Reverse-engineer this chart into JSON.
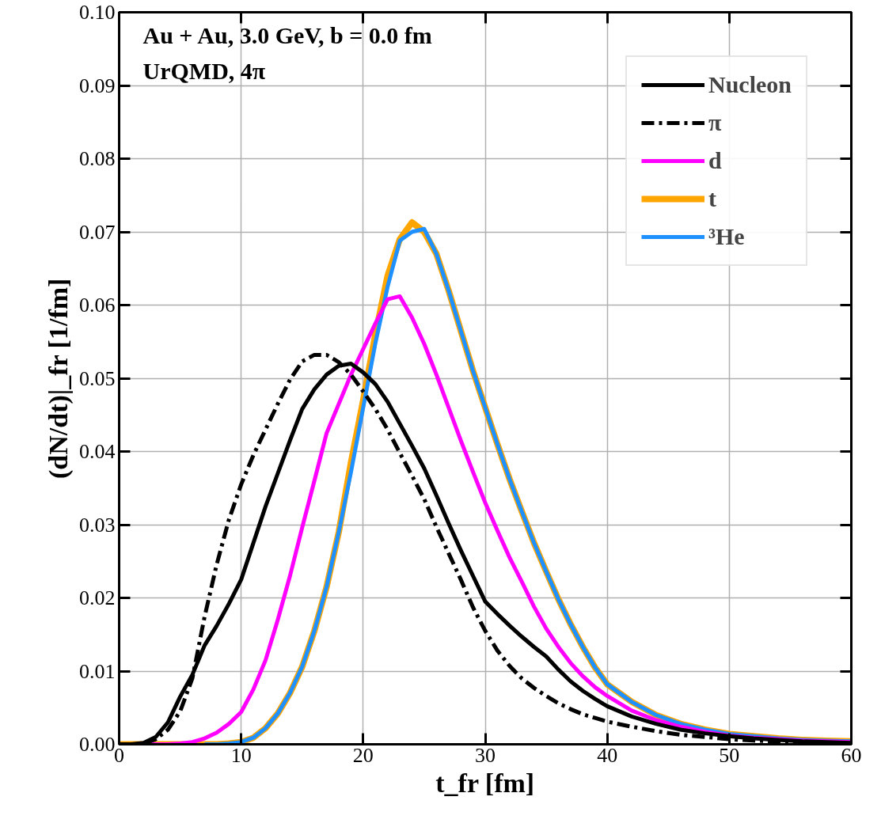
{
  "chart_data": {
    "type": "line",
    "xlabel": "t_fr [fm]",
    "ylabel": "(dN/dt)|_fr [1/fm]",
    "annotations": [
      "Au + Au, 3.0 GeV,  b = 0.0 fm",
      "UrQMD,  4π"
    ],
    "x": [
      0,
      1,
      2,
      3,
      4,
      5,
      6,
      7,
      8,
      9,
      10,
      11,
      12,
      13,
      14,
      15,
      16,
      17,
      18,
      19,
      20,
      21,
      22,
      23,
      24,
      25,
      26,
      27,
      28,
      29,
      30,
      31,
      32,
      33,
      34,
      35,
      36,
      37,
      38,
      39,
      40,
      42,
      44,
      46,
      48,
      50,
      52,
      54,
      56,
      58,
      60
    ],
    "series": [
      {
        "name": "Nucleon",
        "color": "#000000",
        "line_style": "solid",
        "values": [
          0,
          0,
          0.0002,
          0.001,
          0.003,
          0.0065,
          0.0095,
          0.0135,
          0.0162,
          0.0192,
          0.0225,
          0.0275,
          0.0325,
          0.037,
          0.0415,
          0.0458,
          0.0485,
          0.0505,
          0.0517,
          0.052,
          0.0508,
          0.0492,
          0.0468,
          0.0438,
          0.0408,
          0.0377,
          0.034,
          0.0302,
          0.0265,
          0.023,
          0.0195,
          0.0178,
          0.0162,
          0.0147,
          0.0133,
          0.012,
          0.0102,
          0.0086,
          0.0073,
          0.0062,
          0.0052,
          0.0038,
          0.0028,
          0.002,
          0.0015,
          0.0011,
          0.0008,
          0.0006,
          0.0004,
          0.0003,
          0.0002
        ]
      },
      {
        "name": "π",
        "color": "#000000",
        "line_style": "dashdot",
        "values": [
          0,
          0,
          0.0001,
          0.0007,
          0.002,
          0.0045,
          0.009,
          0.0174,
          0.0246,
          0.0307,
          0.0355,
          0.0395,
          0.043,
          0.0465,
          0.0498,
          0.0523,
          0.0532,
          0.0532,
          0.0522,
          0.0505,
          0.0482,
          0.0458,
          0.043,
          0.0398,
          0.0367,
          0.0335,
          0.0297,
          0.0261,
          0.0225,
          0.0187,
          0.0155,
          0.0128,
          0.0107,
          0.009,
          0.0077,
          0.0066,
          0.0056,
          0.0048,
          0.0041,
          0.0036,
          0.0031,
          0.0024,
          0.0018,
          0.0013,
          0.001,
          0.0007,
          0.0005,
          0.0004,
          0.0003,
          0.0002,
          0.0001
        ]
      },
      {
        "name": "d",
        "color": "#ff00ff",
        "line_style": "solid",
        "values": [
          null,
          null,
          0,
          0,
          0,
          0.0001,
          0.0003,
          0.0008,
          0.0016,
          0.0028,
          0.0044,
          0.0075,
          0.0115,
          0.017,
          0.023,
          0.0296,
          0.036,
          0.0425,
          0.0465,
          0.0505,
          0.054,
          0.0575,
          0.0608,
          0.0612,
          0.0583,
          0.0547,
          0.0505,
          0.046,
          0.0415,
          0.0372,
          0.033,
          0.0292,
          0.0255,
          0.0222,
          0.0188,
          0.0158,
          0.0133,
          0.0111,
          0.0093,
          0.0078,
          0.0066,
          0.0046,
          0.0033,
          0.0024,
          0.0017,
          0.0012,
          0.0009,
          0.0007,
          0.0005,
          0.0004,
          0.0003
        ]
      },
      {
        "name": "t",
        "color": "#ffa500",
        "line_style": "solid",
        "values": [
          0,
          0,
          0,
          0,
          0,
          0,
          0,
          0,
          0,
          0.0001,
          0.0003,
          0.0009,
          0.0022,
          0.0042,
          0.007,
          0.0106,
          0.0155,
          0.0215,
          0.029,
          0.0385,
          0.047,
          0.056,
          0.064,
          0.069,
          0.0713,
          0.07,
          0.067,
          0.062,
          0.0565,
          0.051,
          0.046,
          0.041,
          0.0362,
          0.0318,
          0.0275,
          0.0236,
          0.0198,
          0.0164,
          0.0133,
          0.0105,
          0.0082,
          0.0058,
          0.004,
          0.0028,
          0.002,
          0.0014,
          0.0011,
          0.0008,
          0.0006,
          0.0005,
          0.0004
        ]
      },
      {
        "name": "³He",
        "color": "#1e90ff",
        "line_style": "solid",
        "values": [
          null,
          null,
          null,
          null,
          null,
          null,
          null,
          0,
          0,
          0.0001,
          0.0003,
          0.0009,
          0.0022,
          0.0042,
          0.007,
          0.0106,
          0.0155,
          0.0215,
          0.029,
          0.0372,
          0.046,
          0.0548,
          0.0625,
          0.0688,
          0.07,
          0.0704,
          0.067,
          0.062,
          0.0565,
          0.051,
          0.046,
          0.041,
          0.0362,
          0.0318,
          0.0275,
          0.0236,
          0.0198,
          0.0164,
          0.0133,
          0.0105,
          0.0082,
          0.0058,
          0.004,
          0.0028,
          0.002,
          0.0014,
          0.0011,
          0.0008,
          0.0006,
          0.0005,
          0.0004
        ]
      }
    ],
    "xlim": [
      0,
      60
    ],
    "xticks": [
      0,
      10,
      20,
      30,
      40,
      50,
      60
    ],
    "ylim": [
      0,
      0.1
    ],
    "yticks": [
      {
        "value": 0,
        "label": "0.00"
      },
      {
        "value": 0.01,
        "label": "0.01"
      },
      {
        "value": 0.02,
        "label": "0.02"
      },
      {
        "value": 0.03,
        "label": "0.03"
      },
      {
        "value": 0.04,
        "label": "0.04"
      },
      {
        "value": 0.05,
        "label": "0.05"
      },
      {
        "value": 0.06,
        "label": "0.06"
      },
      {
        "value": 0.07,
        "label": "0.07"
      },
      {
        "value": 0.08,
        "label": "0.08"
      },
      {
        "value": 0.09,
        "label": "0.09"
      },
      {
        "value": 0.1,
        "label": "0.10"
      }
    ],
    "grid": true,
    "legend": "top right"
  }
}
